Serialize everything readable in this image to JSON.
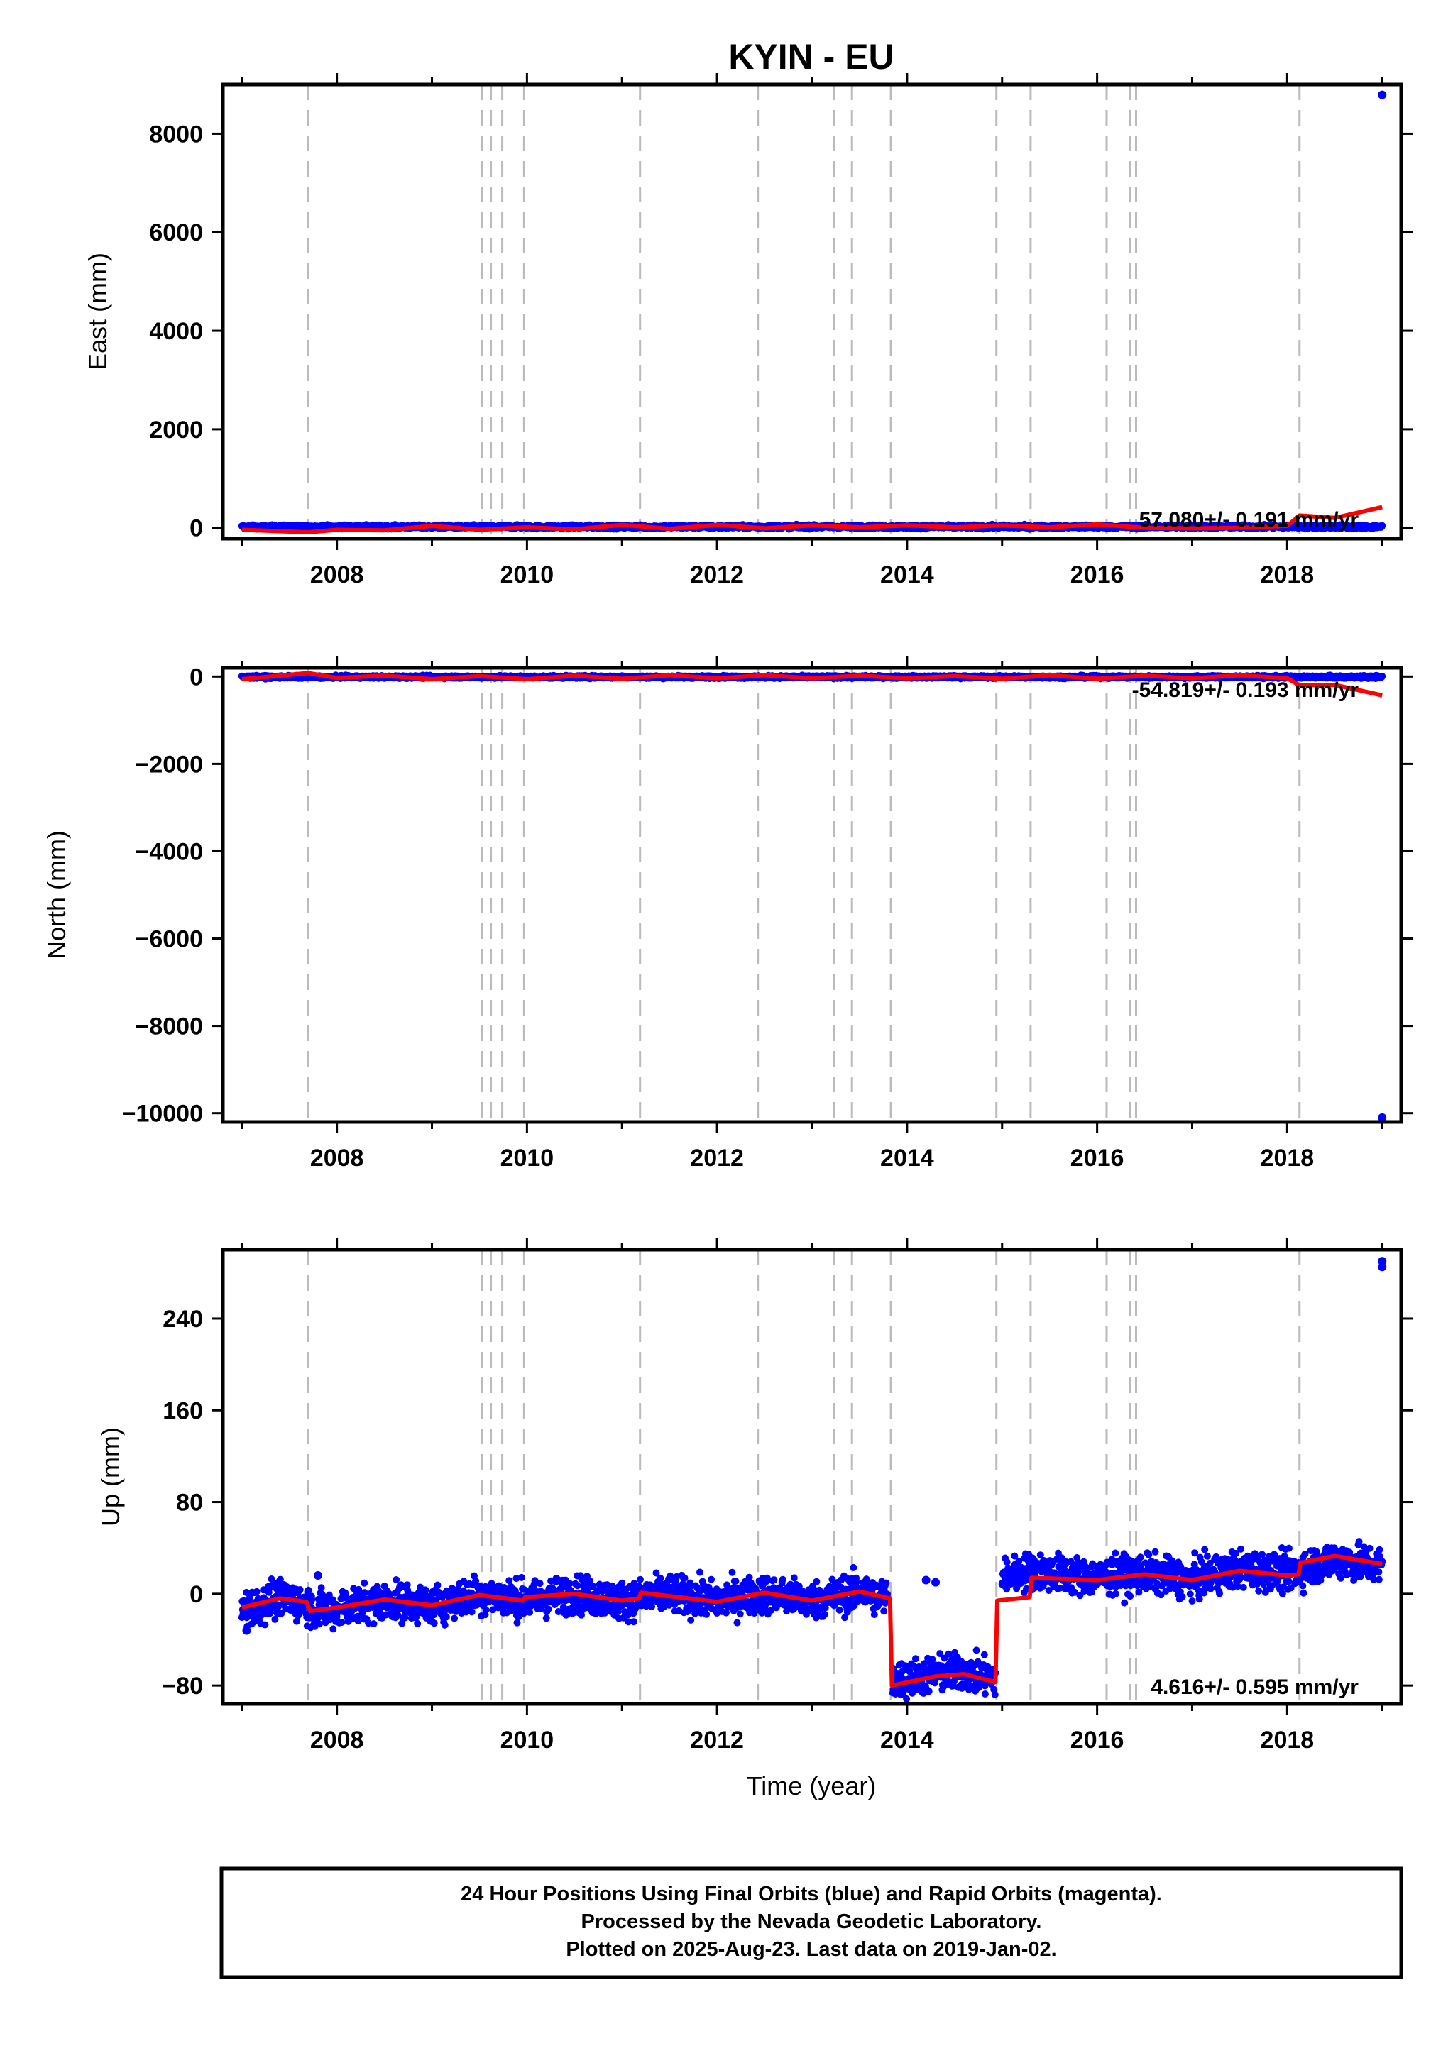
{
  "title": "KYIN - EU",
  "xlabel": "Time (year)",
  "footer": {
    "lines": [
      "24 Hour Positions Using Final Orbits (blue) and Rapid Orbits (magenta).",
      "Processed by the Nevada Geodetic Laboratory.",
      "Plotted on 2025-Aug-23. Last data on 2019-Jan-02."
    ]
  },
  "colors": {
    "data": "#0000ff",
    "model": "#ff0000",
    "event_lines": "#bbbbbb",
    "axes": "#000000"
  },
  "events": [
    2007.7,
    2009.53,
    2009.62,
    2009.74,
    2009.97,
    2011.19,
    2012.43,
    2013.23,
    2013.42,
    2013.83,
    2014.94,
    2015.3,
    2016.1,
    2016.35,
    2016.41,
    2018.13
  ],
  "chart_data": [
    {
      "type": "scatter",
      "name": "East",
      "ylabel": "East (mm)",
      "xlim": [
        2006.8,
        2019.2
      ],
      "ylim": [
        -220,
        9000
      ],
      "xticks": [
        2008,
        2010,
        2012,
        2014,
        2016,
        2018
      ],
      "xtick_labels": [
        "2008",
        "2010",
        "2012",
        "2014",
        "2016",
        "2018"
      ],
      "yticks": [
        0,
        2000,
        4000,
        6000,
        8000
      ],
      "ytick_labels": [
        "0",
        "2000",
        "4000",
        "6000",
        "8000"
      ],
      "rate": "57.080+/- 0.191 mm/yr",
      "observations": {
        "x_start": 2007.0,
        "x_end": 2019.0,
        "gaps": [],
        "segments": [
          {
            "x": [
              2007.0,
              2019.0
            ],
            "y": [
              20,
              20
            ]
          }
        ],
        "scatter_amplitude": 18,
        "outliers": [
          {
            "x": 2019.0,
            "y": 8790
          }
        ]
      },
      "model": {
        "x": [
          2007.0,
          2007.7,
          2008.0,
          2008.5,
          2009.0,
          2009.5,
          2010.0,
          2010.5,
          2011.0,
          2011.5,
          2012.0,
          2012.5,
          2013.0,
          2013.5,
          2014.0,
          2014.5,
          2015.0,
          2015.5,
          2016.0,
          2016.5,
          2017.0,
          2017.5,
          2018.0,
          2018.13,
          2018.5,
          2019.0
        ],
        "y": [
          -40,
          -90,
          -40,
          -50,
          40,
          -40,
          10,
          -30,
          60,
          -20,
          60,
          -10,
          50,
          10,
          50,
          10,
          50,
          10,
          70,
          0,
          -10,
          0,
          40,
          250,
          200,
          420
        ]
      }
    },
    {
      "type": "scatter",
      "name": "North",
      "ylabel": "North (mm)",
      "xlim": [
        2006.8,
        2019.2
      ],
      "ylim": [
        -10200,
        200
      ],
      "xticks": [
        2008,
        2010,
        2012,
        2014,
        2016,
        2018
      ],
      "xtick_labels": [
        "2008",
        "2010",
        "2012",
        "2014",
        "2016",
        "2018"
      ],
      "yticks": [
        0,
        -2000,
        -4000,
        -6000,
        -8000,
        -10000
      ],
      "ytick_labels": [
        "0",
        "−2000",
        "−4000",
        "−6000",
        "−8000",
        "−10000"
      ],
      "rate": "-54.819+/- 0.193 mm/yr",
      "observations": {
        "x_start": 2007.0,
        "x_end": 2019.0,
        "gaps": [],
        "segments": [
          {
            "x": [
              2007.0,
              2019.0
            ],
            "y": [
              -10,
              -10
            ]
          }
        ],
        "scatter_amplitude": 15,
        "outliers": [
          {
            "x": 2019.0,
            "y": -10100
          }
        ]
      },
      "model": {
        "x": [
          2007.0,
          2007.7,
          2008.0,
          2008.5,
          2009.0,
          2009.5,
          2010.0,
          2010.5,
          2011.0,
          2011.5,
          2012.0,
          2012.5,
          2013.0,
          2013.5,
          2014.0,
          2014.5,
          2015.0,
          2015.5,
          2016.0,
          2016.5,
          2017.0,
          2017.5,
          2018.0,
          2018.13,
          2018.5,
          2019.0
        ],
        "y": [
          -60,
          80,
          -30,
          20,
          -60,
          10,
          -60,
          20,
          -50,
          30,
          -40,
          30,
          -40,
          20,
          -40,
          10,
          -50,
          30,
          -50,
          20,
          -40,
          30,
          -40,
          -200,
          -190,
          -430
        ]
      }
    },
    {
      "type": "scatter",
      "name": "Up",
      "ylabel": "Up (mm)",
      "xlim": [
        2006.8,
        2019.2
      ],
      "ylim": [
        -96,
        300
      ],
      "xticks": [
        2008,
        2010,
        2012,
        2014,
        2016,
        2018
      ],
      "xtick_labels": [
        "2008",
        "2010",
        "2012",
        "2014",
        "2016",
        "2018"
      ],
      "yticks": [
        -80,
        0,
        80,
        160,
        240
      ],
      "ytick_labels": [
        "−80",
        "0",
        "80",
        "160",
        "240"
      ],
      "rate": "4.616+/- 0.595 mm/yr",
      "observations": {
        "x_start": 2007.0,
        "x_end": 2019.0,
        "gaps": [],
        "segments": [
          {
            "x": [
              2007.0,
              2007.4,
              2007.7,
              2007.75,
              2008.5,
              2009.0,
              2009.5,
              2010.0,
              2010.5,
              2011.0,
              2011.5,
              2012.0,
              2012.5,
              2013.0,
              2013.5,
              2013.8
            ],
            "y": [
              -14,
              -4,
              -8,
              -16,
              -6,
              -10,
              0,
              -6,
              0,
              -6,
              0,
              -6,
              0,
              -6,
              2,
              -4
            ]
          },
          {
            "x": [
              2013.85,
              2014.3,
              2014.6,
              2014.93
            ],
            "y": [
              -76,
              -70,
              -68,
              -74
            ]
          },
          {
            "x": [
              2015.0,
              2015.3,
              2016.0,
              2016.5,
              2017.0,
              2017.5,
              2018.0,
              2018.5,
              2019.0
            ],
            "y": [
              14,
              20,
              14,
              18,
              12,
              22,
              18,
              30,
              24
            ]
          }
        ],
        "scatter_amplitude": 8,
        "outliers": [
          {
            "x": 2019.0,
            "y": 290
          },
          {
            "x": 2019.0,
            "y": 285
          },
          {
            "x": 2014.2,
            "y": 12
          },
          {
            "x": 2014.3,
            "y": 10
          },
          {
            "x": 2007.8,
            "y": 16
          },
          {
            "x": 2007.05,
            "y": -32
          }
        ]
      },
      "model": {
        "x": [
          2007.0,
          2007.4,
          2007.68,
          2007.72,
          2008.0,
          2008.5,
          2009.0,
          2009.5,
          2009.96,
          2009.98,
          2010.5,
          2011.0,
          2011.18,
          2011.2,
          2011.5,
          2012.0,
          2012.5,
          2013.0,
          2013.5,
          2013.82,
          2013.84,
          2014.3,
          2014.6,
          2014.93,
          2014.95,
          2015.29,
          2015.31,
          2016.0,
          2016.5,
          2017.0,
          2017.5,
          2018.0,
          2018.12,
          2018.14,
          2018.5,
          2019.0
        ],
        "y": [
          -12,
          -4,
          -7,
          -15,
          -12,
          -5,
          -10,
          -1,
          -6,
          -3,
          0,
          -6,
          -4,
          1,
          -2,
          -7,
          1,
          -6,
          2,
          -4,
          -80,
          -72,
          -70,
          -77,
          -6,
          -3,
          14,
          12,
          17,
          12,
          20,
          16,
          17,
          27,
          33,
          26
        ]
      }
    }
  ]
}
